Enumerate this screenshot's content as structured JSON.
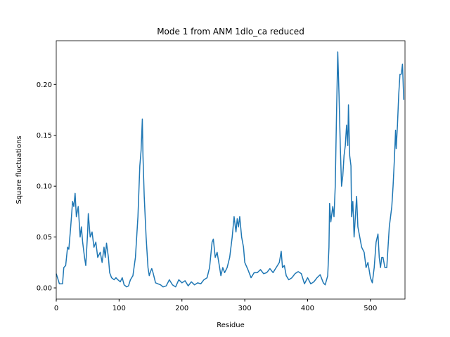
{
  "chart_data": {
    "type": "line",
    "title": "Mode 1 from ANM 1dlo_ca reduced",
    "x_label": "Residue",
    "y_label": "Square fluctuations",
    "xlim": [
      0,
      555
    ],
    "ylim": [
      -0.011,
      0.243
    ],
    "xticks": [
      0,
      100,
      200,
      300,
      400,
      500
    ],
    "yticks": [
      {
        "value": 0,
        "label": "0.00"
      },
      {
        "value": 0.05,
        "label": "0.05"
      },
      {
        "value": 0.1,
        "label": "0.10"
      },
      {
        "value": 0.15,
        "label": "0.15"
      },
      {
        "value": 0.2,
        "label": "0.20"
      }
    ],
    "grid": false,
    "series": [
      {
        "color": "#1f77b4",
        "x": [
          0,
          5,
          10,
          12,
          15,
          18,
          20,
          23,
          26,
          28,
          30,
          32,
          35,
          38,
          40,
          42,
          45,
          47,
          50,
          51,
          54,
          57,
          60,
          63,
          66,
          70,
          73,
          76,
          78,
          80,
          83,
          85,
          88,
          92,
          95,
          98,
          102,
          105,
          108,
          112,
          115,
          118,
          122,
          126,
          130,
          133,
          135,
          137,
          138,
          140,
          143,
          146,
          148,
          150,
          152,
          154,
          158,
          162,
          166,
          170,
          175,
          180,
          185,
          190,
          195,
          200,
          205,
          210,
          215,
          220,
          225,
          230,
          235,
          240,
          244,
          248,
          250,
          253,
          256,
          260,
          262,
          265,
          268,
          272,
          276,
          280,
          283,
          286,
          288,
          290,
          292,
          295,
          298,
          300,
          305,
          310,
          315,
          320,
          325,
          330,
          335,
          340,
          345,
          350,
          355,
          358,
          360,
          363,
          366,
          370,
          375,
          380,
          385,
          390,
          395,
          400,
          405,
          410,
          415,
          420,
          425,
          428,
          432,
          434,
          435,
          437,
          440,
          442,
          444,
          446,
          448,
          450,
          452,
          454,
          456,
          458,
          460,
          462,
          464,
          465,
          467,
          469,
          470,
          472,
          474,
          476,
          478,
          480,
          483,
          486,
          490,
          493,
          496,
          500,
          503,
          506,
          509,
          512,
          514,
          516,
          518,
          520,
          523,
          526,
          528,
          530,
          532,
          534,
          536,
          538,
          540,
          541,
          543,
          545,
          547,
          549,
          551,
          553
        ],
        "values": [
          0.014,
          0.004,
          0.004,
          0.02,
          0.022,
          0.04,
          0.038,
          0.06,
          0.085,
          0.08,
          0.093,
          0.07,
          0.08,
          0.05,
          0.06,
          0.045,
          0.03,
          0.022,
          0.055,
          0.073,
          0.05,
          0.055,
          0.04,
          0.045,
          0.03,
          0.035,
          0.025,
          0.04,
          0.03,
          0.044,
          0.03,
          0.015,
          0.01,
          0.008,
          0.01,
          0.008,
          0.006,
          0.01,
          0.003,
          0.001,
          0.002,
          0.008,
          0.012,
          0.03,
          0.07,
          0.12,
          0.135,
          0.166,
          0.13,
          0.09,
          0.05,
          0.02,
          0.012,
          0.016,
          0.019,
          0.015,
          0.005,
          0.004,
          0.003,
          0.001,
          0.002,
          0.008,
          0.003,
          0.001,
          0.008,
          0.005,
          0.007,
          0.002,
          0.006,
          0.003,
          0.005,
          0.004,
          0.008,
          0.01,
          0.02,
          0.045,
          0.048,
          0.03,
          0.035,
          0.02,
          0.012,
          0.02,
          0.015,
          0.02,
          0.03,
          0.05,
          0.07,
          0.055,
          0.068,
          0.06,
          0.07,
          0.05,
          0.04,
          0.025,
          0.018,
          0.01,
          0.015,
          0.015,
          0.018,
          0.014,
          0.015,
          0.019,
          0.015,
          0.02,
          0.025,
          0.036,
          0.02,
          0.022,
          0.012,
          0.008,
          0.01,
          0.014,
          0.016,
          0.014,
          0.004,
          0.01,
          0.004,
          0.006,
          0.01,
          0.013,
          0.005,
          0.003,
          0.012,
          0.04,
          0.083,
          0.065,
          0.08,
          0.07,
          0.1,
          0.17,
          0.232,
          0.19,
          0.14,
          0.1,
          0.11,
          0.13,
          0.14,
          0.16,
          0.14,
          0.18,
          0.13,
          0.12,
          0.07,
          0.085,
          0.05,
          0.07,
          0.09,
          0.06,
          0.05,
          0.04,
          0.035,
          0.02,
          0.025,
          0.01,
          0.005,
          0.02,
          0.045,
          0.053,
          0.03,
          0.02,
          0.03,
          0.03,
          0.02,
          0.02,
          0.04,
          0.06,
          0.07,
          0.08,
          0.1,
          0.125,
          0.155,
          0.137,
          0.16,
          0.19,
          0.21,
          0.21,
          0.22,
          0.185
        ]
      }
    ]
  }
}
